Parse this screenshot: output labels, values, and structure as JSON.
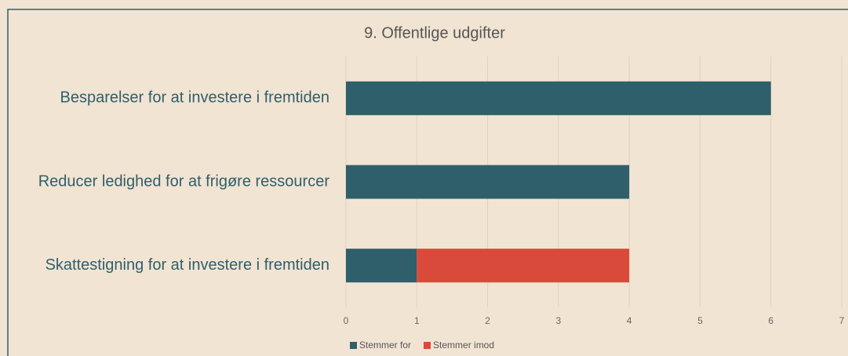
{
  "chart_data": {
    "type": "stacked-bar-horizontal",
    "title": "9. Offentlige udgifter",
    "categories": [
      "Besparelser for at investere i fremtiden",
      "Reducer ledighed for at frigøre ressourcer",
      "Skattestigning for at investere i fremtiden"
    ],
    "series": [
      {
        "name": "Stemmer for",
        "color": "#2e5f6b",
        "values": [
          6,
          4,
          1
        ]
      },
      {
        "name": "Stemmer imod",
        "color": "#d94a3a",
        "values": [
          0,
          0,
          3
        ]
      }
    ],
    "xlim": [
      0,
      7
    ],
    "xticks": [
      0,
      1,
      2,
      3,
      4,
      5,
      6,
      7
    ],
    "grid": true,
    "legend": "bottom"
  }
}
